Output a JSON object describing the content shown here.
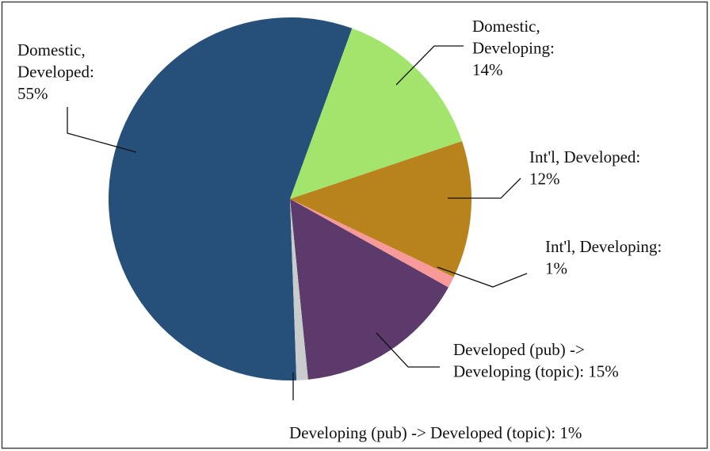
{
  "chart_data": {
    "type": "pie",
    "labels": [
      [
        "Domestic,",
        "Developed:",
        "55%"
      ],
      [
        "Domestic,",
        "Developing:",
        "14%"
      ],
      [
        "Int'l, Developed:",
        "12%"
      ],
      [
        "Int'l, Developing:",
        "1%"
      ],
      [
        "Developed (pub) ->",
        "Developing (topic): 15%"
      ],
      [
        "Developing (pub) -> Developed (topic): 1%"
      ]
    ],
    "values": [
      55,
      14,
      12,
      1,
      15,
      1
    ],
    "colors": [
      "#26507a",
      "#a3e46c",
      "#b8821c",
      "#f79a99",
      "#5d3a6c",
      "#c9cccc"
    ]
  }
}
